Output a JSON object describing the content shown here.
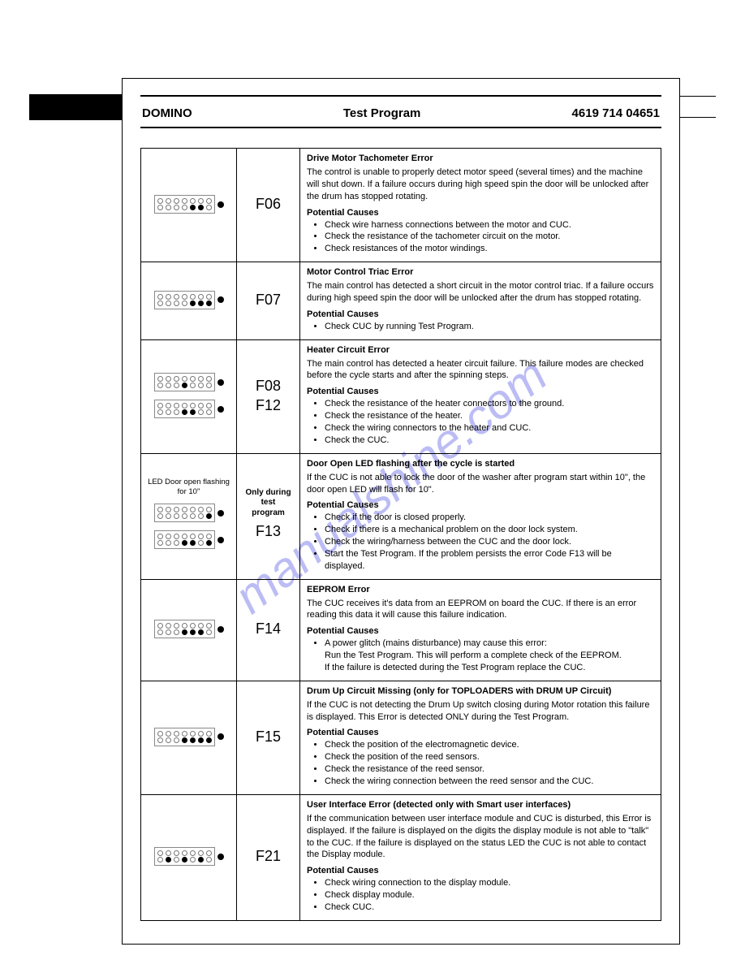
{
  "header": {
    "left": "DOMINO",
    "center": "Test Program",
    "right": "4619 714 04651"
  },
  "watermark": {
    "text": "manualshine.com",
    "color": "#6b6be8",
    "opacity": 0.45
  },
  "potential_causes_label": "Potential Causes",
  "rows": [
    {
      "codes": [
        "F06"
      ],
      "leds": [
        [
          0,
          0,
          0,
          0,
          1,
          1,
          0
        ]
      ],
      "title": "Drive Motor Tachometer Error",
      "body": "The control is unable to properly detect motor speed (several times) and the machine will shut down. If a failure occurs during high speed spin the door will be unlocked after the drum has stopped rotating.",
      "causes": [
        "Check wire harness connections between the motor and CUC.",
        "Check the resistance of the tachometer circuit on the motor.",
        "Check resistances of the motor windings."
      ]
    },
    {
      "codes": [
        "F07"
      ],
      "leds": [
        [
          0,
          0,
          0,
          0,
          1,
          1,
          1
        ]
      ],
      "title": "Motor Control Triac Error",
      "body": "The main control has detected a short circuit in the motor control triac. If a failure occurs during high speed spin the door will be unlocked after the drum has stopped rotating.",
      "causes": [
        "Check CUC by running Test Program."
      ]
    },
    {
      "codes": [
        "F08",
        "F12"
      ],
      "leds": [
        [
          0,
          0,
          0,
          1,
          0,
          0,
          0
        ],
        [
          0,
          0,
          0,
          1,
          1,
          0,
          0
        ]
      ],
      "title": "Heater Circuit Error",
      "body": "The main control has detected a heater circuit failure. This failure modes are checked before the cycle starts and after the spinning steps.",
      "causes": [
        "Check the resistance of the heater connectors to the ground.",
        "Check the resistance of the heater.",
        "Check the wiring connectors to the heater and CUC.",
        "Check the CUC."
      ]
    },
    {
      "codes": [
        "F13"
      ],
      "code_note": "Only during test program",
      "vis_label": "LED Door open flashing for 10\"",
      "leds": [
        [
          0,
          0,
          0,
          0,
          0,
          0,
          1
        ],
        [
          0,
          0,
          0,
          1,
          1,
          0,
          1
        ]
      ],
      "title": "Door Open LED flashing after the cycle is started",
      "body": "If the CUC is not able to lock the door of the washer after program start within 10\", the door open LED will flash for 10\".",
      "causes": [
        "Check if the door is closed properly.",
        "Check if there is a mechanical problem on the door lock system.",
        "Check the wiring/harness between the CUC and the door lock.",
        "Start the Test Program. If the problem persists the error Code F13 will be displayed."
      ]
    },
    {
      "codes": [
        "F14"
      ],
      "leds": [
        [
          0,
          0,
          0,
          1,
          1,
          1,
          0
        ]
      ],
      "title": "EEPROM Error",
      "body": "The CUC receives it's data from an EEPROM on board the CUC. If there is an error reading this data it will cause this failure indication.",
      "causes": [
        "A power glitch (mains disturbance) may cause this error:\nRun the Test Program. This will perform a complete check of the EEPROM.\nIf the failure is detected during the Test Program replace the CUC."
      ]
    },
    {
      "codes": [
        "F15"
      ],
      "leds": [
        [
          0,
          0,
          0,
          1,
          1,
          1,
          1
        ]
      ],
      "title": "Drum Up Circuit Missing (only for TOPLOADERS with DRUM UP Circuit)",
      "body": "If the CUC is not detecting the Drum Up switch closing during Motor rotation this failure is displayed. This Error is detected ONLY during the Test Program.",
      "causes": [
        "Check the position of the electromagnetic device.",
        "Check the position of the reed sensors.",
        "Check the resistance of the reed sensor.",
        "Check the wiring connection between the reed sensor and the CUC."
      ]
    },
    {
      "codes": [
        "F21"
      ],
      "leds": [
        [
          0,
          1,
          0,
          1,
          0,
          1,
          0
        ]
      ],
      "title": "User Interface Error (detected only with Smart user interfaces)",
      "body": "If the communication between user interface module and CUC is disturbed, this Error is displayed. If the failure is displayed on the digits the display module is not able to \"talk\" to the CUC. If the failure is displayed on the status LED the CUC is not able to contact the Display module.",
      "causes": [
        "Check wiring connection to the display module.",
        "Check display module.",
        "Check CUC."
      ]
    }
  ]
}
